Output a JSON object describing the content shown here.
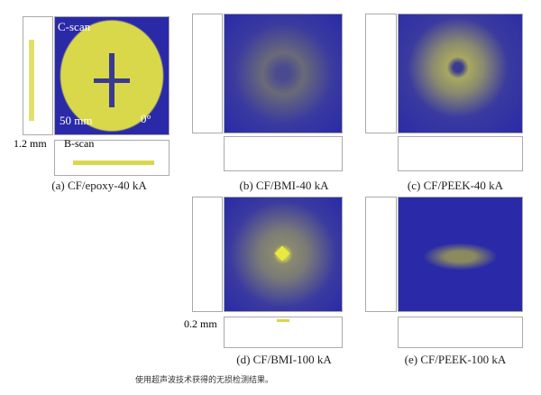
{
  "panels": [
    {
      "id": "a",
      "label": "(a) CF/epoxy-40 kA",
      "scale_label": "1.2 mm",
      "cscan_label": "C-scan",
      "bscan_label": "B-scan",
      "length_label": "50 mm",
      "angle_label": "0°"
    },
    {
      "id": "b",
      "label": "(b) CF/BMI-40 kA"
    },
    {
      "id": "c",
      "label": "(c) CF/PEEK-40 kA"
    },
    {
      "id": "d",
      "label": "(d) CF/BMI-100 kA",
      "scale_label": "0.2 mm"
    },
    {
      "id": "e",
      "label": "(e) CF/PEEK-100 kA"
    }
  ],
  "caption": "使用超声波技术获得的无损检测结果。",
  "colors": {
    "background_blue": "#2a2aa8",
    "damage_yellow": "#d8d84a"
  }
}
